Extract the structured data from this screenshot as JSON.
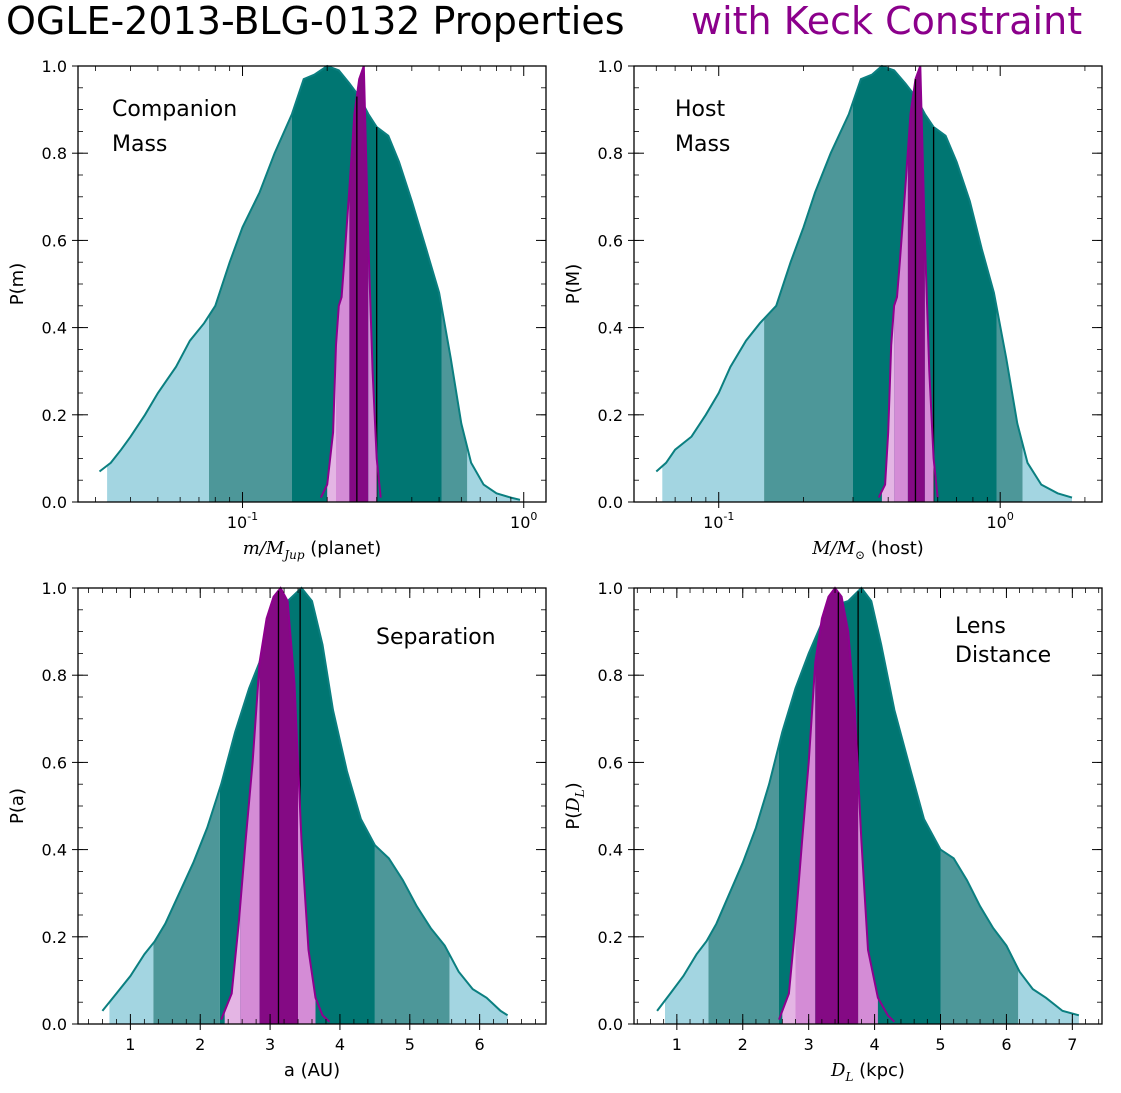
{
  "title": "OGLE-2013-BLG-0132 Properties",
  "title_keck": "with Keck Constraint",
  "colors": {
    "light_blue": "#a3d5e1",
    "mid_teal": "#4d9799",
    "dark_teal": "#007672",
    "teal_line": "#0b7f80",
    "light_pink": "#e4b5e4",
    "mid_pink": "#d48cd6",
    "purple": "#840a84",
    "purple_line": "#8e008e",
    "keck_text": "#8b008b"
  },
  "chart_data": [
    {
      "id": "companion",
      "type": "area",
      "xscale": "log",
      "xlim": [
        0.026,
        1.2
      ],
      "ylim": [
        0,
        1.0
      ],
      "xticks": [
        {
          "v": 0.1,
          "label": "10",
          "exp": "-1"
        },
        {
          "v": 1.0,
          "label": "10",
          "exp": "0"
        }
      ],
      "xlabel_math": "m/M",
      "xlabel_sub": "Jup",
      "xlabel_rest": " (planet)",
      "ylabel": "P(m)",
      "annotation": [
        "Companion",
        "Mass"
      ],
      "prior": {
        "x": [
          0.031,
          0.034,
          0.037,
          0.04,
          0.045,
          0.05,
          0.058,
          0.065,
          0.073,
          0.08,
          0.09,
          0.1,
          0.115,
          0.13,
          0.15,
          0.165,
          0.18,
          0.2,
          0.22,
          0.24,
          0.26,
          0.28,
          0.3,
          0.33,
          0.36,
          0.4,
          0.45,
          0.5,
          0.55,
          0.6,
          0.65,
          0.72,
          0.8,
          0.9,
          0.97
        ],
        "y": [
          0.07,
          0.09,
          0.12,
          0.15,
          0.2,
          0.25,
          0.31,
          0.37,
          0.41,
          0.45,
          0.55,
          0.63,
          0.71,
          0.8,
          0.89,
          0.97,
          0.98,
          1.0,
          0.99,
          0.96,
          0.93,
          0.89,
          0.86,
          0.84,
          0.78,
          0.69,
          0.58,
          0.48,
          0.33,
          0.18,
          0.09,
          0.04,
          0.02,
          0.01,
          0.005
        ]
      },
      "prior_bounds": [
        0.033,
        0.076,
        0.15,
        0.51,
        0.63
      ],
      "prior_median": 0.3,
      "keck": {
        "x": [
          0.19,
          0.2,
          0.21,
          0.215,
          0.22,
          0.225,
          0.23,
          0.24,
          0.25,
          0.26,
          0.27,
          0.28,
          0.29,
          0.3,
          0.31
        ],
        "y": [
          0.01,
          0.04,
          0.16,
          0.36,
          0.45,
          0.47,
          0.55,
          0.72,
          0.89,
          0.97,
          1.0,
          0.6,
          0.3,
          0.1,
          0.01
        ]
      },
      "keck_bounds": [
        0.2,
        0.215,
        0.24,
        0.28,
        0.3
      ],
      "keck_median": 0.255
    },
    {
      "id": "host",
      "type": "area",
      "xscale": "log",
      "xlim": [
        0.05,
        2.3
      ],
      "ylim": [
        0,
        1.0
      ],
      "xticks": [
        {
          "v": 0.1,
          "label": "10",
          "exp": "-1"
        },
        {
          "v": 1.0,
          "label": "10",
          "exp": "0"
        }
      ],
      "xlabel_math": "M/M",
      "xlabel_sub": "⊙",
      "xlabel_rest": " (host)",
      "ylabel": "P(M)",
      "annotation": [
        "Host",
        "Mass"
      ],
      "prior": {
        "x": [
          0.06,
          0.065,
          0.07,
          0.08,
          0.09,
          0.1,
          0.11,
          0.125,
          0.14,
          0.16,
          0.18,
          0.2,
          0.22,
          0.25,
          0.29,
          0.32,
          0.35,
          0.38,
          0.42,
          0.46,
          0.5,
          0.54,
          0.58,
          0.64,
          0.7,
          0.78,
          0.86,
          0.95,
          1.05,
          1.15,
          1.25,
          1.4,
          1.6,
          1.8
        ],
        "y": [
          0.07,
          0.09,
          0.12,
          0.15,
          0.2,
          0.25,
          0.31,
          0.37,
          0.41,
          0.45,
          0.55,
          0.63,
          0.71,
          0.8,
          0.89,
          0.97,
          0.98,
          1.0,
          0.99,
          0.96,
          0.93,
          0.89,
          0.86,
          0.84,
          0.78,
          0.69,
          0.58,
          0.48,
          0.33,
          0.18,
          0.09,
          0.04,
          0.02,
          0.01
        ]
      },
      "prior_bounds": [
        0.063,
        0.145,
        0.3,
        0.97,
        1.2
      ],
      "prior_median": 0.58,
      "keck": {
        "x": [
          0.37,
          0.39,
          0.4,
          0.41,
          0.42,
          0.43,
          0.44,
          0.46,
          0.48,
          0.5,
          0.52,
          0.54,
          0.56,
          0.58,
          0.6
        ],
        "y": [
          0.01,
          0.04,
          0.16,
          0.36,
          0.45,
          0.47,
          0.55,
          0.72,
          0.89,
          0.97,
          1.0,
          0.6,
          0.3,
          0.1,
          0.01
        ]
      },
      "keck_bounds": [
        0.38,
        0.42,
        0.47,
        0.54,
        0.58
      ],
      "keck_median": 0.5
    },
    {
      "id": "separation",
      "type": "area",
      "xscale": "linear",
      "xlim": [
        0.25,
        6.95
      ],
      "ylim": [
        0,
        1.0
      ],
      "xticks": [
        {
          "v": 1,
          "label": "1"
        },
        {
          "v": 2,
          "label": "2"
        },
        {
          "v": 3,
          "label": "3"
        },
        {
          "v": 4,
          "label": "4"
        },
        {
          "v": 5,
          "label": "5"
        },
        {
          "v": 6,
          "label": "6"
        }
      ],
      "xlabel": "a (AU)",
      "ylabel": "P(a)",
      "annotation": [
        "Separation"
      ],
      "prior": {
        "x": [
          0.6,
          0.8,
          1.0,
          1.2,
          1.35,
          1.5,
          1.7,
          1.9,
          2.1,
          2.3,
          2.5,
          2.7,
          2.9,
          3.1,
          3.25,
          3.45,
          3.6,
          3.75,
          3.9,
          4.1,
          4.3,
          4.5,
          4.7,
          4.9,
          5.1,
          5.3,
          5.5,
          5.7,
          5.9,
          6.1,
          6.3,
          6.4
        ],
        "y": [
          0.03,
          0.07,
          0.11,
          0.16,
          0.19,
          0.23,
          0.3,
          0.37,
          0.45,
          0.55,
          0.67,
          0.77,
          0.85,
          0.92,
          0.97,
          1.0,
          0.97,
          0.87,
          0.72,
          0.58,
          0.47,
          0.41,
          0.38,
          0.33,
          0.27,
          0.22,
          0.18,
          0.12,
          0.08,
          0.06,
          0.03,
          0.02
        ]
      },
      "prior_bounds": [
        0.7,
        1.33,
        2.28,
        4.5,
        5.57
      ],
      "prior_median": 3.43,
      "keck": {
        "x": [
          2.3,
          2.45,
          2.55,
          2.65,
          2.75,
          2.85,
          2.95,
          3.05,
          3.15,
          3.25,
          3.35,
          3.45,
          3.55,
          3.65,
          3.75,
          3.85
        ],
        "y": [
          0.01,
          0.07,
          0.23,
          0.42,
          0.6,
          0.83,
          0.93,
          0.98,
          1.0,
          0.97,
          0.78,
          0.42,
          0.17,
          0.06,
          0.02,
          0.005
        ]
      },
      "keck_bounds": [
        2.35,
        2.57,
        2.85,
        3.4,
        3.65
      ],
      "keck_median": 3.12
    },
    {
      "id": "distance",
      "type": "area",
      "xscale": "linear",
      "xlim": [
        0.35,
        7.45
      ],
      "ylim": [
        0,
        1.0
      ],
      "xticks": [
        {
          "v": 1,
          "label": "1"
        },
        {
          "v": 2,
          "label": "2"
        },
        {
          "v": 3,
          "label": "3"
        },
        {
          "v": 4,
          "label": "4"
        },
        {
          "v": 5,
          "label": "5"
        },
        {
          "v": 6,
          "label": "6"
        },
        {
          "v": 7,
          "label": "7"
        }
      ],
      "xlabel_math": "D",
      "xlabel_sub": "L",
      "xlabel_rest": " (kpc)",
      "ylabel": "P(",
      "ylabel_math": "D",
      "ylabel_sub": "L",
      "ylabel_end": ")",
      "annotation": [
        "Lens",
        "Distance"
      ],
      "prior": {
        "x": [
          0.7,
          0.9,
          1.1,
          1.3,
          1.45,
          1.6,
          1.8,
          2.0,
          2.2,
          2.4,
          2.6,
          2.8,
          3.0,
          3.2,
          3.4,
          3.6,
          3.8,
          3.95,
          4.1,
          4.3,
          4.55,
          4.75,
          5.0,
          5.2,
          5.4,
          5.6,
          5.8,
          6.0,
          6.2,
          6.4,
          6.6,
          6.85,
          7.1
        ],
        "y": [
          0.03,
          0.07,
          0.11,
          0.16,
          0.19,
          0.23,
          0.3,
          0.37,
          0.45,
          0.55,
          0.67,
          0.77,
          0.85,
          0.92,
          0.96,
          0.97,
          1.0,
          0.97,
          0.87,
          0.72,
          0.58,
          0.47,
          0.4,
          0.38,
          0.33,
          0.27,
          0.22,
          0.18,
          0.12,
          0.08,
          0.06,
          0.03,
          0.02
        ]
      },
      "prior_bounds": [
        0.82,
        1.48,
        2.55,
        5.0,
        6.18
      ],
      "prior_median": 3.75,
      "keck": {
        "x": [
          2.55,
          2.7,
          2.8,
          2.9,
          3.0,
          3.1,
          3.2,
          3.3,
          3.4,
          3.5,
          3.6,
          3.7,
          3.8,
          3.9,
          4.05,
          4.2,
          4.3
        ],
        "y": [
          0.01,
          0.07,
          0.23,
          0.42,
          0.6,
          0.83,
          0.93,
          0.98,
          1.0,
          0.98,
          0.9,
          0.72,
          0.42,
          0.17,
          0.06,
          0.02,
          0.005
        ]
      },
      "keck_bounds": [
        2.6,
        2.8,
        3.1,
        3.75,
        4.05
      ],
      "keck_median": 3.45
    }
  ],
  "yticks": [
    {
      "v": 0.0,
      "label": "0.0"
    },
    {
      "v": 0.2,
      "label": "0.2"
    },
    {
      "v": 0.4,
      "label": "0.4"
    },
    {
      "v": 0.6,
      "label": "0.6"
    },
    {
      "v": 0.8,
      "label": "0.8"
    },
    {
      "v": 1.0,
      "label": "1.0"
    }
  ]
}
